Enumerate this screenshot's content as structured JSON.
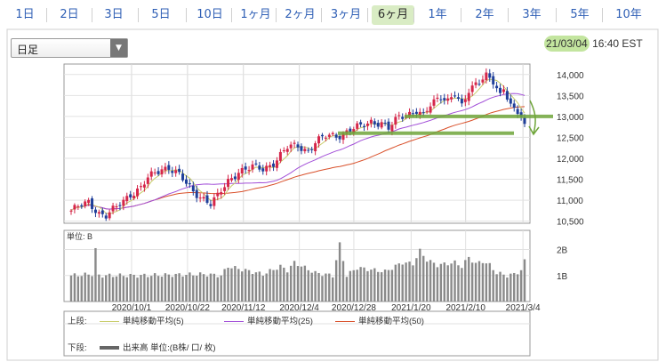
{
  "tabs": [
    {
      "label": "1日",
      "active": false
    },
    {
      "label": "2日",
      "active": false
    },
    {
      "label": "3日",
      "active": false
    },
    {
      "label": "5日",
      "active": false
    },
    {
      "label": "10日",
      "active": false
    },
    {
      "label": "1ヶ月",
      "active": false
    },
    {
      "label": "2ヶ月",
      "active": false
    },
    {
      "label": "3ヶ月",
      "active": false
    },
    {
      "label": "6ヶ月",
      "active": true
    },
    {
      "label": "1年",
      "active": false
    },
    {
      "label": "2年",
      "active": false
    },
    {
      "label": "3年",
      "active": false
    },
    {
      "label": "5年",
      "active": false
    },
    {
      "label": "10年",
      "active": false
    }
  ],
  "interval_select": {
    "value": "日足"
  },
  "timestamp": {
    "date": "21/03/04",
    "time": "16:40 EST"
  },
  "legend": {
    "upper_label": "上段:",
    "lower_label": "下段:",
    "ma5": "単純移動平均(5)",
    "ma25": "単純移動平均(25)",
    "ma50": "単純移動平均(50)",
    "volume": "出来高 単位:(B株/ 口/ 枚)"
  },
  "colors": {
    "ma5": "#c8cc6a",
    "ma25": "#a24fd8",
    "ma50": "#d9502a",
    "up_candle": "#d6264a",
    "down_candle": "#1f3f9a",
    "volume_bar": "#8a8a8a",
    "annotation": "#6fa53a"
  },
  "chart_data": {
    "type": "candlestick",
    "price_axis": {
      "min": 10500,
      "max": 14000,
      "ticks": [
        "14,000",
        "13,500",
        "13,000",
        "12,500",
        "12,000",
        "11,500",
        "11,000",
        "10,500"
      ]
    },
    "x_tick_labels": [
      "2020/10/1",
      "2020/10/22",
      "2020/11/12",
      "2020/12/4",
      "2020/12/28",
      "2021/1/20",
      "2021/2/10",
      "2021/3/4"
    ],
    "close_path": [
      [
        0,
        10750
      ],
      [
        5,
        10950
      ],
      [
        8,
        10700
      ],
      [
        10,
        10630
      ],
      [
        13,
        10820
      ],
      [
        17,
        11150
      ],
      [
        20,
        11300
      ],
      [
        22,
        11520
      ],
      [
        26,
        11750
      ],
      [
        28,
        11800
      ],
      [
        31,
        11600
      ],
      [
        33,
        11380
      ],
      [
        35,
        11200
      ],
      [
        38,
        11050
      ],
      [
        40,
        10920
      ],
      [
        42,
        11080
      ],
      [
        45,
        11450
      ],
      [
        48,
        11700
      ],
      [
        52,
        11780
      ],
      [
        55,
        11740
      ],
      [
        58,
        11900
      ],
      [
        62,
        12250
      ],
      [
        65,
        12300
      ],
      [
        68,
        12180
      ],
      [
        70,
        12380
      ],
      [
        73,
        12520
      ],
      [
        77,
        12560
      ],
      [
        80,
        12680
      ],
      [
        83,
        12750
      ],
      [
        86,
        12880
      ],
      [
        89,
        12850
      ],
      [
        91,
        12700
      ],
      [
        94,
        12980
      ],
      [
        97,
        13080
      ],
      [
        99,
        13150
      ],
      [
        101,
        13000
      ],
      [
        103,
        13250
      ],
      [
        106,
        13500
      ],
      [
        108,
        13400
      ],
      [
        110,
        13550
      ],
      [
        112,
        13200
      ],
      [
        114,
        13600
      ],
      [
        116,
        13800
      ],
      [
        118,
        13950
      ],
      [
        119,
        14000
      ],
      [
        121,
        13800
      ],
      [
        123,
        13450
      ],
      [
        124,
        13650
      ],
      [
        126,
        13300
      ],
      [
        127,
        13200
      ],
      [
        128,
        13150
      ],
      [
        129,
        13050
      ],
      [
        130,
        12750
      ]
    ],
    "ma_final": {
      "ma5": 13150,
      "ma25": 13600,
      "ma50": 13250
    },
    "volume_axis": {
      "ticks": [
        "2B",
        "1B"
      ],
      "unit_label": "単位: B"
    },
    "volume_path": [
      [
        0,
        1.0
      ],
      [
        6,
        1.05
      ],
      [
        7,
        2.0
      ],
      [
        8,
        1.0
      ],
      [
        20,
        1.0
      ],
      [
        38,
        1.05
      ],
      [
        43,
        1.0
      ],
      [
        45,
        1.35
      ],
      [
        55,
        1.05
      ],
      [
        60,
        1.35
      ],
      [
        62,
        1.2
      ],
      [
        64,
        1.5
      ],
      [
        70,
        1.1
      ],
      [
        75,
        1.0
      ],
      [
        77,
        2.2
      ],
      [
        79,
        1.0
      ],
      [
        82,
        1.3
      ],
      [
        90,
        1.15
      ],
      [
        95,
        1.5
      ],
      [
        98,
        1.45
      ],
      [
        100,
        1.95
      ],
      [
        102,
        1.6
      ],
      [
        105,
        1.4
      ],
      [
        110,
        1.5
      ],
      [
        112,
        1.35
      ],
      [
        114,
        1.7
      ],
      [
        116,
        1.45
      ],
      [
        118,
        1.55
      ],
      [
        120,
        1.4
      ],
      [
        122,
        1.1
      ],
      [
        125,
        1.0
      ],
      [
        127,
        1.05
      ],
      [
        129,
        1.2
      ],
      [
        130,
        1.55
      ]
    ]
  },
  "annotations": [
    {
      "label": "resistance-line",
      "value": 13000
    },
    {
      "label": "support-line",
      "value": 12600
    }
  ]
}
